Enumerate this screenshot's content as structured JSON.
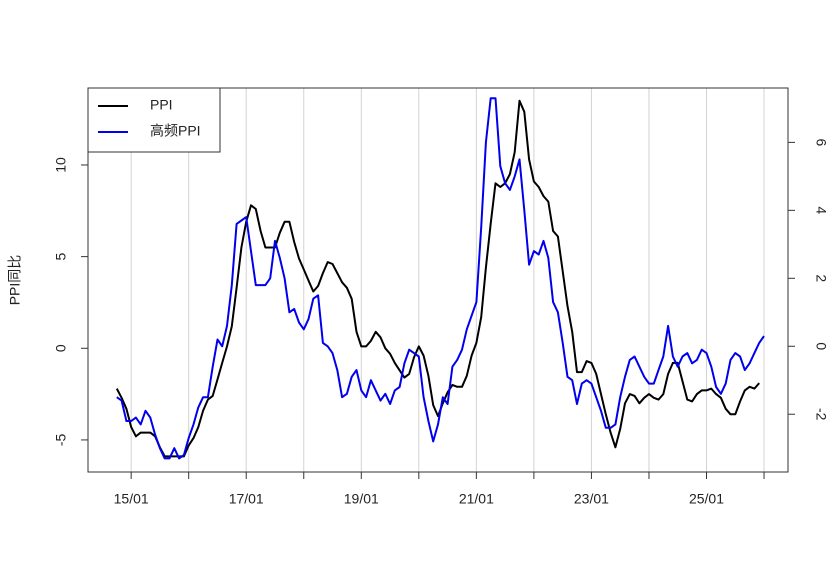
{
  "chart_data": {
    "type": "line",
    "ylabel": "PPI同比",
    "x": [
      "14/10",
      "14/11",
      "14/12",
      "15/01",
      "15/02",
      "15/03",
      "15/04",
      "15/05",
      "15/06",
      "15/07",
      "15/08",
      "15/09",
      "15/10",
      "15/11",
      "15/12",
      "16/01",
      "16/02",
      "16/03",
      "16/04",
      "16/05",
      "16/06",
      "16/07",
      "16/08",
      "16/09",
      "16/10",
      "16/11",
      "16/12",
      "17/01",
      "17/02",
      "17/03",
      "17/04",
      "17/05",
      "17/06",
      "17/07",
      "17/08",
      "17/09",
      "17/10",
      "17/11",
      "17/12",
      "18/01",
      "18/02",
      "18/03",
      "18/04",
      "18/05",
      "18/06",
      "18/07",
      "18/08",
      "18/09",
      "18/10",
      "18/11",
      "18/12",
      "19/01",
      "19/02",
      "19/03",
      "19/04",
      "19/05",
      "19/06",
      "19/07",
      "19/08",
      "19/09",
      "19/10",
      "19/11",
      "19/12",
      "20/01",
      "20/02",
      "20/03",
      "20/04",
      "20/05",
      "20/06",
      "20/07",
      "20/08",
      "20/09",
      "20/10",
      "20/11",
      "20/12",
      "21/01",
      "21/02",
      "21/03",
      "21/04",
      "21/05",
      "21/06",
      "21/07",
      "21/08",
      "21/09",
      "21/10",
      "21/11",
      "21/12",
      "22/01",
      "22/02",
      "22/03",
      "22/04",
      "22/05",
      "22/06",
      "22/07",
      "22/08",
      "22/09",
      "22/10",
      "22/11",
      "22/12",
      "23/01",
      "23/02",
      "23/03",
      "23/04",
      "23/05",
      "23/06",
      "23/07",
      "23/08",
      "23/09",
      "23/10",
      "23/11",
      "23/12",
      "24/01",
      "24/02",
      "24/03",
      "24/04",
      "24/05",
      "24/06",
      "24/07",
      "24/08",
      "24/09",
      "24/10",
      "24/11",
      "24/12",
      "25/01",
      "25/02",
      "25/03",
      "25/04",
      "25/05",
      "25/06",
      "25/07",
      "25/08",
      "25/09",
      "25/10",
      "25/11",
      "25/12",
      "26/01"
    ],
    "series": [
      {
        "name": "PPI",
        "color": "#000000",
        "axis": "y",
        "values": [
          -2.2,
          -2.7,
          -3.3,
          -4.3,
          -4.8,
          -4.6,
          -4.6,
          -4.6,
          -4.8,
          -5.4,
          -5.9,
          -5.9,
          -5.9,
          -5.9,
          -5.9,
          -5.3,
          -4.9,
          -4.3,
          -3.4,
          -2.8,
          -2.6,
          -1.7,
          -0.8,
          0.1,
          1.2,
          3.3,
          5.5,
          6.9,
          7.8,
          7.6,
          6.4,
          5.5,
          5.5,
          5.5,
          6.3,
          6.9,
          6.9,
          5.8,
          4.9,
          4.3,
          3.7,
          3.1,
          3.4,
          4.1,
          4.7,
          4.6,
          4.1,
          3.6,
          3.3,
          2.7,
          0.9,
          0.1,
          0.1,
          0.4,
          0.9,
          0.6,
          0.0,
          -0.3,
          -0.8,
          -1.2,
          -1.6,
          -1.4,
          -0.5,
          0.1,
          -0.4,
          -1.5,
          -3.1,
          -3.7,
          -3.0,
          -2.4,
          -2.0,
          -2.1,
          -2.1,
          -1.5,
          -0.4,
          0.3,
          1.7,
          4.4,
          6.8,
          9.0,
          8.8,
          9.0,
          9.5,
          10.7,
          13.5,
          12.9,
          10.3,
          9.1,
          8.8,
          8.3,
          8.0,
          6.4,
          6.1,
          4.2,
          2.3,
          0.9,
          -1.3,
          -1.3,
          -0.7,
          -0.8,
          -1.4,
          -2.5,
          -3.6,
          -4.6,
          -5.4,
          -4.4,
          -3.0,
          -2.5,
          -2.6,
          -3.0,
          -2.7,
          -2.5,
          -2.7,
          -2.8,
          -2.5,
          -1.4,
          -0.8,
          -0.8,
          -1.8,
          -2.8,
          -2.9,
          -2.5,
          -2.3,
          -2.3,
          -2.2,
          -2.5,
          -2.7,
          -3.3,
          -3.6,
          -3.6,
          -2.9,
          -2.3,
          -2.1,
          -2.2,
          -1.9,
          null
        ]
      },
      {
        "name": "高频PPI",
        "color": "#0000ee",
        "axis": "y2",
        "values": [
          -1.5,
          -1.6,
          -2.2,
          -2.2,
          -2.1,
          -2.3,
          -1.9,
          -2.1,
          -2.6,
          -3.0,
          -3.3,
          -3.3,
          -3.0,
          -3.3,
          -3.2,
          -2.7,
          -2.3,
          -1.8,
          -1.5,
          -1.5,
          -0.6,
          0.2,
          0.0,
          0.6,
          1.8,
          3.6,
          3.7,
          3.8,
          2.8,
          1.8,
          1.8,
          1.8,
          2.0,
          3.1,
          2.6,
          2.0,
          1.0,
          1.1,
          0.7,
          0.5,
          0.8,
          1.4,
          1.5,
          0.1,
          0.0,
          -0.2,
          -0.7,
          -1.5,
          -1.4,
          -0.9,
          -0.7,
          -1.3,
          -1.5,
          -1.0,
          -1.3,
          -1.6,
          -1.4,
          -1.7,
          -1.3,
          -1.2,
          -0.5,
          -0.1,
          -0.2,
          -0.3,
          -1.5,
          -2.2,
          -2.8,
          -2.3,
          -1.5,
          -1.7,
          -0.6,
          -0.4,
          -0.1,
          0.5,
          0.9,
          1.3,
          3.5,
          6.0,
          7.3,
          7.3,
          5.3,
          4.8,
          4.6,
          5.0,
          5.5,
          4.0,
          2.4,
          2.8,
          2.7,
          3.1,
          2.6,
          1.3,
          1.0,
          0.1,
          -0.9,
          -1.0,
          -1.7,
          -1.1,
          -1.0,
          -1.1,
          -1.5,
          -1.9,
          -2.4,
          -2.4,
          -2.3,
          -1.5,
          -0.9,
          -0.4,
          -0.3,
          -0.6,
          -0.9,
          -1.1,
          -1.1,
          -0.7,
          -0.3,
          0.6,
          -0.3,
          -0.6,
          -0.3,
          -0.2,
          -0.5,
          -0.4,
          -0.1,
          -0.2,
          -0.6,
          -1.2,
          -1.4,
          -1.1,
          -0.4,
          -0.2,
          -0.3,
          -0.7,
          -0.5,
          -0.2,
          0.1,
          0.3
        ]
      }
    ],
    "xlim": [
      "14/04",
      "26/06"
    ],
    "xticks": [
      "15/01",
      {
        "value": "16/01",
        "label": null
      },
      "17/01",
      {
        "value": "18/01",
        "label": null
      },
      "19/01",
      {
        "value": "20/01",
        "label": null
      },
      "21/01",
      {
        "value": "22/01",
        "label": null
      },
      "23/01",
      {
        "value": "24/01",
        "label": null
      },
      "25/01",
      {
        "value": "26/01",
        "label": null
      }
    ],
    "ylim": [
      -6.75,
      14.2
    ],
    "yticks": [
      -5,
      0,
      5,
      10
    ],
    "y2lim": [
      -3.7,
      7.6
    ],
    "y2ticks": [
      -2,
      0,
      2,
      4,
      6
    ],
    "grid": true,
    "legend": "top-left"
  }
}
